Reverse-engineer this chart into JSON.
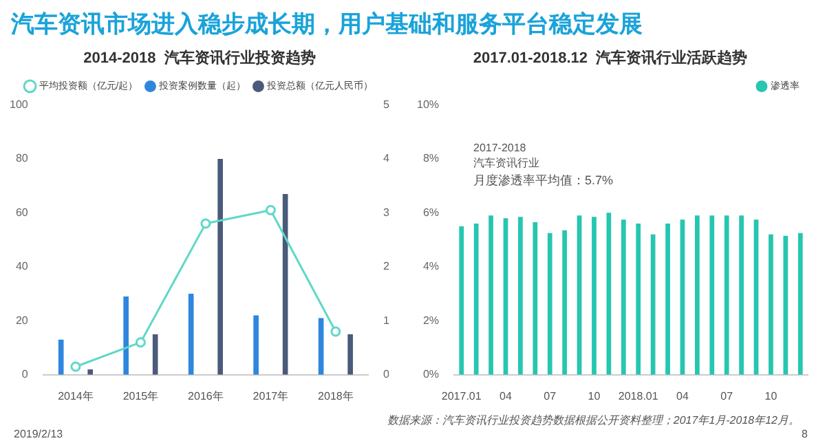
{
  "chart_data": [
    {
      "type": "bar",
      "title": "2014-2018  汽车资讯行业投资趋势",
      "annotations": [
        "汽车资讯市场进入稳步成长期，用户基础和服务平台稳定发展"
      ],
      "categories": [
        "2014年",
        "2015年",
        "2016年",
        "2017年",
        "2018年"
      ],
      "series": [
        {
          "name": "投资案例数量（起）",
          "color": "#2e86de",
          "values": [
            13,
            29,
            30,
            22,
            21
          ]
        },
        {
          "name": "投资总额（亿元人民币）",
          "color": "#4a5a7a",
          "values": [
            2,
            15,
            80,
            67,
            15
          ]
        },
        {
          "name": "平均投资额（亿元/起）",
          "type": "line",
          "axis": "y2",
          "color": "#5fd8c8",
          "values": [
            0.15,
            0.6,
            2.8,
            3.05,
            0.8
          ]
        }
      ],
      "ylim": [
        0,
        100
      ],
      "yticks": [
        0,
        20,
        40,
        60,
        80,
        100
      ],
      "y2lim": [
        0,
        5
      ],
      "y2ticks": [
        0,
        1,
        2,
        3,
        4,
        5
      ],
      "legend": "top",
      "marker": "circle",
      "grid": false
    },
    {
      "type": "bar",
      "title": "2017.01-2018.12  汽车资讯行业活跃趋势",
      "annotations": [
        "2017-2018",
        "汽车资讯行业",
        "月度渗透率平均值：5.7%",
        "数据来源：汽车资讯行业投资趋势数据根据公开资料整理；2017年1月-2018年12月。",
        "2019/2/13",
        "8"
      ],
      "categories": [
        "2017.01",
        null,
        null,
        "04",
        null,
        null,
        "07",
        null,
        null,
        "10",
        null,
        null,
        "2018.01",
        null,
        null,
        "04",
        null,
        null,
        "07",
        null,
        null,
        "10",
        null,
        null
      ],
      "series": [
        {
          "name": "渗透率",
          "color": "#26c6b0",
          "values": [
            5.5,
            5.6,
            5.9,
            5.8,
            5.85,
            5.65,
            5.25,
            5.35,
            5.9,
            5.85,
            6.0,
            5.75,
            5.6,
            5.2,
            5.6,
            5.75,
            5.9,
            5.9,
            5.9,
            5.9,
            5.75,
            5.2,
            5.15,
            5.25
          ]
        }
      ],
      "ylim": [
        0,
        10
      ],
      "yticks": [
        {
          "value": 0,
          "label": "0%"
        },
        {
          "value": 2,
          "label": "2%"
        },
        {
          "value": 4,
          "label": "4%"
        },
        {
          "value": 6,
          "label": "6%"
        },
        {
          "value": 8,
          "label": "8%"
        },
        {
          "value": 10,
          "label": "10%"
        }
      ],
      "legend": "top right",
      "grid": false
    }
  ]
}
